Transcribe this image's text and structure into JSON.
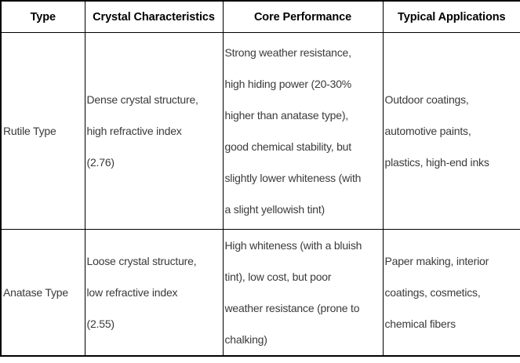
{
  "table": {
    "headers": [
      "Type",
      "Crystal Characteristics",
      "Core Performance",
      "Typical Applications"
    ],
    "rows": [
      {
        "type": "Rutile Type",
        "crystal_characteristics": [
          "Dense crystal structure,",
          "high refractive index",
          "(2.76)"
        ],
        "core_performance": [
          "Strong weather resistance,",
          "high hiding power (20-30%",
          "higher than anatase type),",
          "good chemical stability, but",
          "slightly lower whiteness (with",
          "a slight yellowish tint)"
        ],
        "typical_applications": [
          "Outdoor coatings,",
          "automotive paints,",
          "plastics, high-end inks"
        ]
      },
      {
        "type": "Anatase Type",
        "crystal_characteristics": [
          "Loose crystal structure,",
          "low refractive index",
          "(2.55)"
        ],
        "core_performance": [
          "High whiteness (with a bluish",
          "tint), low cost, but poor",
          "weather resistance (prone to",
          "chalking)"
        ],
        "typical_applications": [
          "Paper making, interior",
          "coatings, cosmetics,",
          "chemical fibers"
        ]
      }
    ]
  },
  "colors": {
    "border": "#000000",
    "header_text": "#000000",
    "body_text": "#3a3a3a",
    "background": "#ffffff"
  }
}
